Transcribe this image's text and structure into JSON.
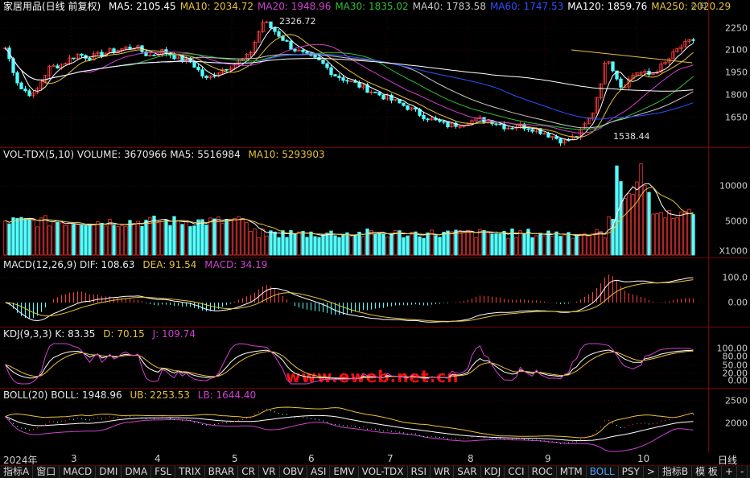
{
  "main": {
    "title": "家居用品(日线 前复权)",
    "ma": [
      {
        "label": "MA5: 2105.45",
        "color": "#ffffff"
      },
      {
        "label": "MA10: 2034.72",
        "color": "#e8c23a"
      },
      {
        "label": "MA20: 1948.96",
        "color": "#d040d0"
      },
      {
        "label": "MA30: 1835.02",
        "color": "#30c030"
      },
      {
        "label": "MA40: 1783.58",
        "color": "#c8c8c8"
      },
      {
        "label": "MA60: 1747.53",
        "color": "#3050ff"
      },
      {
        "label": "MA120: 1859.76",
        "color": "#ffffff"
      },
      {
        "label": "MA250: 2020.29",
        "color": "#e8c23a"
      }
    ],
    "y_ticks": [
      "2250",
      "2100",
      "1950",
      "1800",
      "1650"
    ],
    "high_note": "2326.72",
    "low_note": "1538.44",
    "icons": "◇ ⊡"
  },
  "vol": {
    "header": "VOL-TDX(5,10) VOLUME: 3670966 MA5: 5516984",
    "ma10": "MA10: 5293903",
    "y_ticks": [
      "10000",
      "5000"
    ],
    "unit": "X1000"
  },
  "macd": {
    "header": "MACD(12,26,9) DIF: 108.63",
    "dea": "DEA: 91.54",
    "macd": "MACD: 34.19",
    "y_ticks": [
      "100.0",
      "0.00"
    ]
  },
  "kdj": {
    "header": "KDJ(9,3,3) K: 83.35",
    "d": "D: 70.15",
    "j": "J: 109.74",
    "y_ticks": [
      "100.00",
      "80.00",
      "50.00",
      "20.00",
      "0.00"
    ]
  },
  "boll": {
    "header": "BOLL(20) BOLL: 1948.96",
    "ub": "UB: 2253.53",
    "lb": "LB: 1644.40",
    "y_ticks": [
      "2500",
      "2000"
    ]
  },
  "x_axis": [
    "2024年",
    "3",
    "4",
    "5",
    "6",
    "7",
    "8",
    "9",
    "10"
  ],
  "x_right": "日线",
  "watermark": "www.eweb.net.cn",
  "tabs": [
    "指标A",
    "窗口",
    "MACD",
    "DMI",
    "DMA",
    "FSL",
    "TRIX",
    "BRAR",
    "CR",
    "VR",
    "OBV",
    "ASI",
    "EMV",
    "VOL-TDX",
    "RSI",
    "WR",
    "SAR",
    "KDJ",
    "CCI",
    "ROC",
    "MTM",
    "BOLL",
    "PSY",
    ">",
    "指标B",
    "模 板",
    "+",
    "-"
  ],
  "active_tab": "BOLL",
  "chart_data": {
    "type": "candlestick",
    "title": "家居用品(日线 前复权)",
    "series": [
      {
        "name": "MA5",
        "values": [
          2105.45
        ]
      },
      {
        "name": "MA10",
        "values": [
          2034.72
        ]
      },
      {
        "name": "MA20",
        "values": [
          1948.96
        ]
      },
      {
        "name": "MA30",
        "values": [
          1835.02
        ]
      },
      {
        "name": "MA40",
        "values": [
          1783.58
        ]
      },
      {
        "name": "MA60",
        "values": [
          1747.53
        ]
      },
      {
        "name": "MA120",
        "values": [
          1859.76
        ]
      },
      {
        "name": "MA250",
        "values": [
          2020.29
        ]
      }
    ],
    "close_path": [
      2150,
      1900,
      1850,
      2020,
      2050,
      2110,
      2090,
      2120,
      2140,
      2160,
      2100,
      2130,
      2090,
      2060,
      1950,
      2010,
      2050,
      2100,
      2320,
      2240,
      2150,
      2100,
      2060,
      1980,
      1940,
      1900,
      1860,
      1820,
      1780,
      1730,
      1690,
      1660,
      1680,
      1700,
      1690,
      1650,
      1660,
      1640,
      1600,
      1560,
      1600,
      1750,
      2100,
      1900,
      2000,
      1980,
      2050,
      2150,
      2200
    ],
    "ylim": [
      1550,
      2350
    ],
    "x_months": [
      "2024年",
      "3",
      "4",
      "5",
      "6",
      "7",
      "8",
      "9",
      "10"
    ],
    "annotations": [
      "2326.72",
      "1538.44"
    ]
  }
}
